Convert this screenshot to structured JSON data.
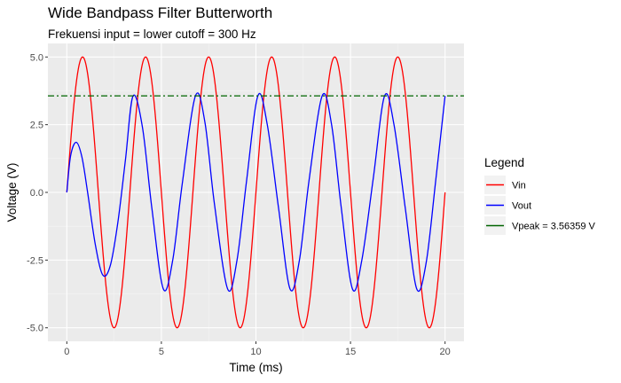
{
  "chart_data": {
    "type": "line",
    "title": "Wide Bandpass Filter Butterworth",
    "subtitle": "Frekuensi input = lower cutoff = 300 Hz",
    "xlabel": "Time (ms)",
    "ylabel": "Voltage (V)",
    "xlim": [
      -1,
      21
    ],
    "ylim": [
      -5.5,
      5.5
    ],
    "x_ticks": [
      0,
      5,
      10,
      15,
      20
    ],
    "x_tick_labels": [
      "0",
      "5",
      "10",
      "15",
      "20"
    ],
    "y_ticks": [
      -5,
      -2.5,
      0,
      2.5,
      5
    ],
    "y_tick_labels": [
      "-5.0",
      "-2.5",
      "0.0",
      "2.5",
      "5.0"
    ],
    "grid": true,
    "legend": {
      "title": "Legend",
      "placement": "right",
      "entries": [
        "Vin",
        "Vout",
        "Vpeak =  3.56359  V"
      ]
    },
    "series": [
      {
        "name": "Vin",
        "color": "#ff0000",
        "function": "sine",
        "amplitude": 5,
        "frequency_hz": 300,
        "phase_shift_ms": 0,
        "x_range": [
          0,
          20
        ]
      },
      {
        "name": "Vout",
        "color": "#0000ff",
        "function": "filtered sine",
        "steady_state_amplitude": 3.56359,
        "frequency_hz": 300,
        "phase_lead_ms": -0.95,
        "x_range": [
          0,
          20
        ],
        "points": [
          [
            0.0,
            0.0
          ],
          [
            0.2,
            1.35
          ],
          [
            0.5,
            1.85
          ],
          [
            0.8,
            1.3
          ],
          [
            1.1,
            0.0
          ],
          [
            1.5,
            -1.9
          ],
          [
            1.9,
            -3.05
          ],
          [
            2.3,
            -2.7
          ],
          [
            2.7,
            -1.1
          ],
          [
            3.1,
            1.2
          ],
          [
            3.5,
            3.56
          ],
          [
            4.0,
            2.4
          ],
          [
            4.5,
            -0.6
          ],
          [
            5.1,
            -3.56
          ],
          [
            5.6,
            -2.5
          ],
          [
            6.1,
            0.3
          ],
          [
            6.8,
            3.56
          ],
          [
            7.3,
            2.6
          ],
          [
            7.8,
            -0.4
          ],
          [
            8.5,
            -3.56
          ],
          [
            9.0,
            -2.5
          ],
          [
            9.5,
            0.4
          ],
          [
            10.1,
            3.56
          ],
          [
            10.6,
            2.5
          ],
          [
            11.2,
            -0.6
          ],
          [
            11.8,
            -3.56
          ],
          [
            12.3,
            -2.5
          ],
          [
            12.8,
            0.4
          ],
          [
            13.5,
            3.56
          ],
          [
            14.0,
            2.5
          ],
          [
            14.5,
            -0.5
          ],
          [
            15.1,
            -3.56
          ],
          [
            15.6,
            -2.5
          ],
          [
            16.2,
            0.5
          ],
          [
            16.8,
            3.56
          ],
          [
            17.3,
            2.5
          ],
          [
            17.9,
            -0.6
          ],
          [
            18.5,
            -3.56
          ],
          [
            19.0,
            -2.6
          ],
          [
            19.5,
            0.4
          ],
          [
            20.0,
            3.56
          ]
        ]
      },
      {
        "name": "Vpeak =  3.56359  V",
        "color": "#006400",
        "function": "horizontal line",
        "value": 3.56359,
        "linetype": "dashdot"
      }
    ]
  }
}
